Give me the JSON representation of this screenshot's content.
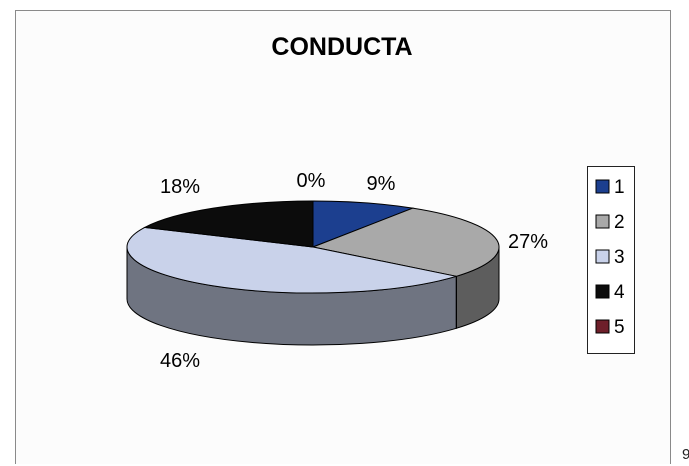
{
  "chart_data": {
    "type": "pie",
    "subtype": "3d",
    "title": "CONDUCTA",
    "categories": [
      "1",
      "2",
      "3",
      "4",
      "5"
    ],
    "values": [
      9,
      27,
      46,
      18,
      0
    ],
    "data_labels": [
      "9%",
      "27%",
      "46%",
      "18%",
      "0%"
    ],
    "colors": [
      "#1c3f8f",
      "#a9a9a9",
      "#c9d2ea",
      "#0c0c0c",
      "#6e1f2a"
    ],
    "legend": {
      "placement": "right",
      "entries": [
        "1",
        "2",
        "3",
        "4",
        "5"
      ]
    }
  },
  "page": {
    "corner_mark": "9"
  }
}
